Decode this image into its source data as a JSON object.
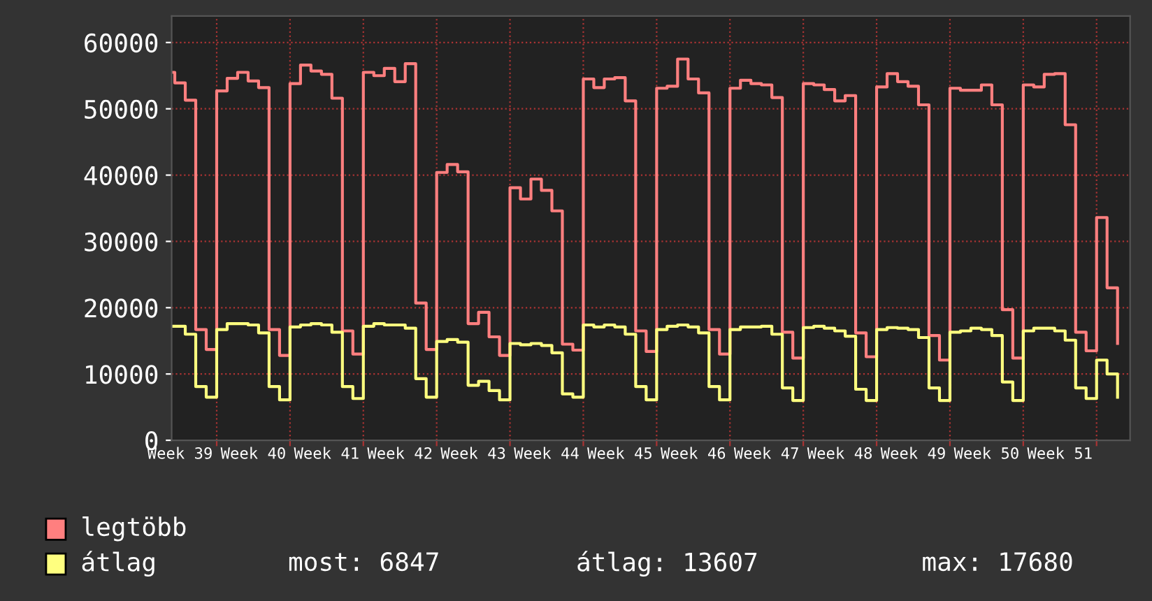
{
  "chart_data": {
    "type": "step",
    "categories": [
      null,
      "Week 39",
      null,
      null,
      null,
      null,
      null,
      null,
      "Week 40",
      null,
      null,
      null,
      null,
      null,
      null,
      "Week 41",
      null,
      null,
      null,
      null,
      null,
      null,
      "Week 42",
      null,
      null,
      null,
      null,
      null,
      null,
      "Week 43",
      null,
      null,
      null,
      null,
      null,
      null,
      "Week 44",
      null,
      null,
      null,
      null,
      null,
      null,
      "Week 45",
      null,
      null,
      null,
      null,
      null,
      null,
      "Week 46",
      null,
      null,
      null,
      null,
      null,
      null,
      "Week 47",
      null,
      null,
      null,
      null,
      null,
      null,
      "Week 48",
      null,
      null,
      null,
      null,
      null,
      null,
      "Week 49",
      null,
      null,
      null,
      null,
      null,
      null,
      "Week 50",
      null,
      null,
      null,
      null,
      null,
      null,
      "Week 51",
      null,
      null,
      null,
      null,
      null,
      null
    ],
    "series": [
      {
        "name": "legtöbb",
        "color": "#ff7f7f",
        "values": [
          55500,
          53900,
          51300,
          16700,
          13700,
          52700,
          54600,
          55500,
          54200,
          53200,
          16700,
          12800,
          53800,
          56600,
          55700,
          55200,
          51600,
          16500,
          13000,
          55500,
          55000,
          56100,
          54100,
          56800,
          20700,
          13700,
          40400,
          41600,
          40500,
          17600,
          19300,
          15600,
          12800,
          38100,
          36400,
          39400,
          37700,
          34600,
          14500,
          13600,
          54500,
          53200,
          54500,
          54700,
          51200,
          16500,
          13400,
          53100,
          53400,
          57500,
          54500,
          52400,
          16700,
          13000,
          53100,
          54300,
          53800,
          53600,
          51700,
          16300,
          12400,
          53800,
          53600,
          52900,
          51200,
          52000,
          16200,
          12600,
          53300,
          55300,
          54100,
          53400,
          50600,
          15800,
          12100,
          53100,
          52800,
          52800,
          53600,
          50600,
          19700,
          12400,
          53600,
          53300,
          55200,
          55300,
          47600,
          16300,
          13500,
          33600,
          23000,
          14600
        ]
      },
      {
        "name": "átlag",
        "color": "#ffff7f",
        "values": [
          17200,
          17200,
          16000,
          8100,
          6500,
          16700,
          17600,
          17600,
          17400,
          16200,
          8100,
          6100,
          17100,
          17400,
          17600,
          17400,
          16300,
          8100,
          6300,
          17200,
          17600,
          17400,
          17400,
          16900,
          9300,
          6500,
          14900,
          15200,
          14800,
          8300,
          8900,
          7500,
          6100,
          14600,
          14400,
          14600,
          14300,
          13200,
          7000,
          6500,
          17400,
          17100,
          17400,
          17100,
          16000,
          8100,
          6100,
          16700,
          17200,
          17400,
          17100,
          16200,
          8100,
          6100,
          16700,
          17100,
          17100,
          17200,
          16000,
          7900,
          6000,
          17000,
          17200,
          16900,
          16500,
          15700,
          7700,
          6000,
          16700,
          17000,
          16900,
          16700,
          15500,
          7900,
          6000,
          16300,
          16500,
          16900,
          16700,
          15800,
          8800,
          6000,
          16500,
          16900,
          16900,
          16500,
          15100,
          7900,
          6300,
          12100,
          10000,
          6500
        ]
      }
    ],
    "ylim": [
      0,
      64000
    ],
    "yticks": [
      0,
      10000,
      20000,
      30000,
      40000,
      50000,
      60000
    ],
    "grid": true,
    "legend": "bottom left",
    "annotations": [
      "most: 6847",
      "átlag: 13607",
      "max: 17680"
    ]
  }
}
